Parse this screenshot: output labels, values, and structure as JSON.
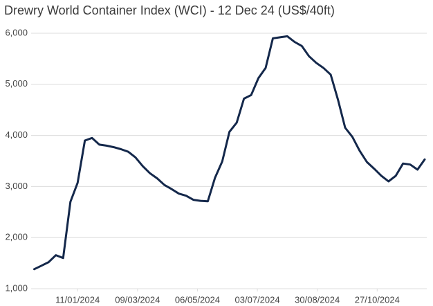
{
  "chart_data": {
    "type": "line",
    "title": "Drewry World Container Index (WCI) - 12 Dec 24 (US$/40ft)",
    "x": [
      "2023-11-30",
      "2023-12-07",
      "2023-12-14",
      "2023-12-21",
      "2023-12-28",
      "2024-01-04",
      "2024-01-11",
      "2024-01-18",
      "2024-01-25",
      "2024-02-01",
      "2024-02-08",
      "2024-02-15",
      "2024-02-22",
      "2024-02-29",
      "2024-03-07",
      "2024-03-14",
      "2024-03-21",
      "2024-03-28",
      "2024-04-04",
      "2024-04-11",
      "2024-04-18",
      "2024-04-25",
      "2024-05-02",
      "2024-05-09",
      "2024-05-16",
      "2024-05-23",
      "2024-05-30",
      "2024-06-06",
      "2024-06-13",
      "2024-06-20",
      "2024-06-27",
      "2024-07-04",
      "2024-07-11",
      "2024-07-18",
      "2024-07-25",
      "2024-08-01",
      "2024-08-08",
      "2024-08-15",
      "2024-08-22",
      "2024-08-29",
      "2024-09-05",
      "2024-09-12",
      "2024-09-19",
      "2024-09-26",
      "2024-10-03",
      "2024-10-10",
      "2024-10-17",
      "2024-10-24",
      "2024-10-31",
      "2024-11-07",
      "2024-11-14",
      "2024-11-21",
      "2024-11-28",
      "2024-12-05",
      "2024-12-12"
    ],
    "series": [
      {
        "name": "WCI",
        "color": "#14284b",
        "values": [
          1382,
          1450,
          1520,
          1656,
          1600,
          2700,
          3072,
          3900,
          3950,
          3820,
          3800,
          3770,
          3730,
          3680,
          3570,
          3400,
          3260,
          3160,
          3030,
          2950,
          2860,
          2820,
          2740,
          2720,
          2710,
          3170,
          3490,
          4070,
          4250,
          4720,
          4790,
          5120,
          5320,
          5900,
          5920,
          5940,
          5830,
          5750,
          5550,
          5420,
          5320,
          5190,
          4700,
          4150,
          3970,
          3700,
          3480,
          3350,
          3210,
          3100,
          3210,
          3450,
          3430,
          3330,
          3530
        ]
      }
    ],
    "xlim": [
      "2023-11-27",
      "2024-12-14"
    ],
    "xticks": [
      {
        "value": "2024-01-11",
        "label": "11/01/2024"
      },
      {
        "value": "2024-03-09",
        "label": "09/03/2024"
      },
      {
        "value": "2024-05-06",
        "label": "06/05/2024"
      },
      {
        "value": "2024-07-03",
        "label": "03/07/2024"
      },
      {
        "value": "2024-08-30",
        "label": "30/08/2024"
      },
      {
        "value": "2024-10-27",
        "label": "27/10/2024"
      }
    ],
    "ylim": [
      1000,
      6000
    ],
    "yticks": [
      {
        "value": 1000,
        "label": "1,000"
      },
      {
        "value": 2000,
        "label": "2,000"
      },
      {
        "value": 3000,
        "label": "3,000"
      },
      {
        "value": 4000,
        "label": "4,000"
      },
      {
        "value": 5000,
        "label": "5,000"
      },
      {
        "value": 6000,
        "label": "6,000"
      }
    ],
    "grid": true
  }
}
